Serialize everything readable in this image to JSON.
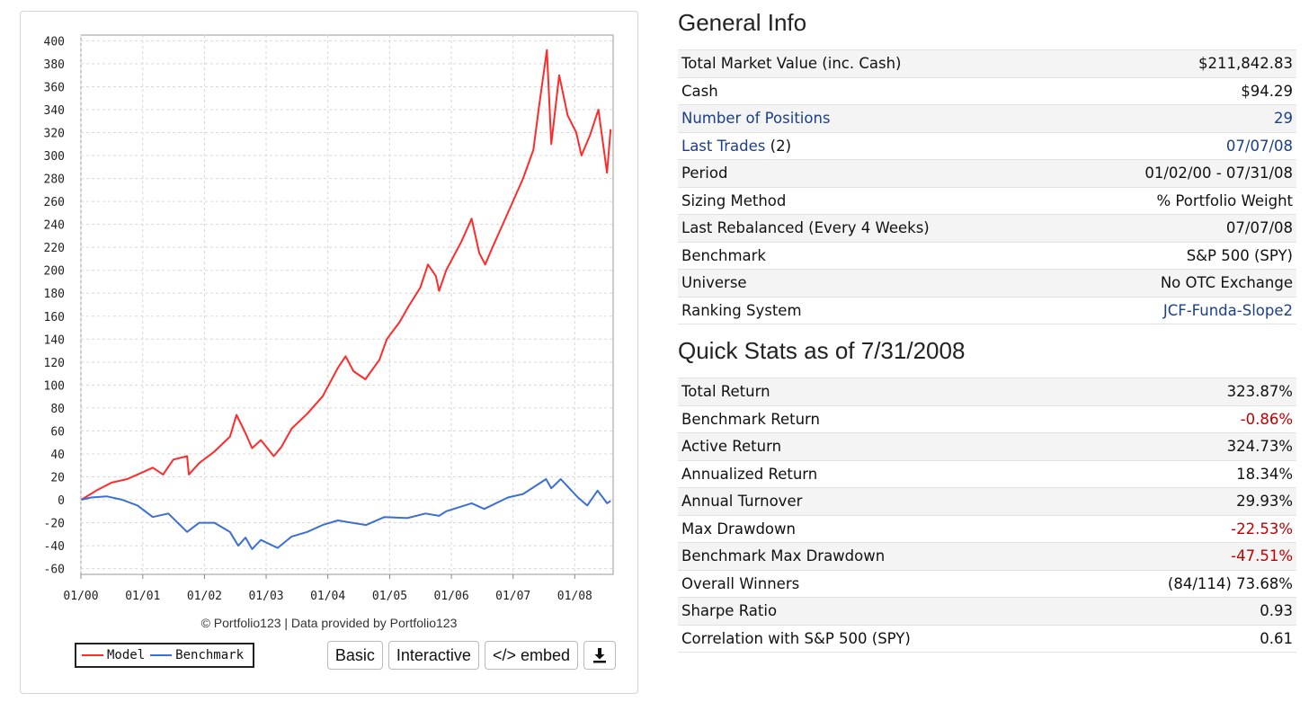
{
  "chart_data": {
    "type": "line",
    "ylim": [
      -65,
      405
    ],
    "yticks": [
      400,
      380,
      360,
      340,
      320,
      300,
      280,
      260,
      240,
      220,
      200,
      180,
      160,
      140,
      120,
      100,
      80,
      60,
      40,
      20,
      0,
      -20,
      -40,
      -60
    ],
    "x_ticks": [
      "01/00",
      "01/01",
      "01/02",
      "01/03",
      "01/04",
      "01/05",
      "01/06",
      "01/07",
      "01/08"
    ],
    "x_range": [
      "2000-01-01",
      "2008-08-15"
    ],
    "grid": true,
    "legend_position": "bottom-left",
    "series": [
      {
        "name": "Model",
        "color": "#ff2a2a",
        "points": [
          [
            "2000-01-03",
            0
          ],
          [
            "2000-04-01",
            8
          ],
          [
            "2000-07-01",
            15
          ],
          [
            "2000-10-01",
            18
          ],
          [
            "2000-12-01",
            22
          ],
          [
            "2001-03-01",
            28
          ],
          [
            "2001-05-01",
            22
          ],
          [
            "2001-07-01",
            35
          ],
          [
            "2001-09-20",
            38
          ],
          [
            "2001-10-01",
            22
          ],
          [
            "2001-12-01",
            32
          ],
          [
            "2002-03-01",
            42
          ],
          [
            "2002-06-01",
            55
          ],
          [
            "2002-07-10",
            74
          ],
          [
            "2002-09-01",
            58
          ],
          [
            "2002-10-10",
            45
          ],
          [
            "2002-12-01",
            52
          ],
          [
            "2003-02-15",
            38
          ],
          [
            "2003-04-01",
            46
          ],
          [
            "2003-06-01",
            62
          ],
          [
            "2003-09-01",
            75
          ],
          [
            "2003-12-01",
            90
          ],
          [
            "2004-03-01",
            115
          ],
          [
            "2004-04-15",
            125
          ],
          [
            "2004-06-01",
            112
          ],
          [
            "2004-08-10",
            105
          ],
          [
            "2004-11-01",
            122
          ],
          [
            "2004-12-15",
            140
          ],
          [
            "2005-03-01",
            155
          ],
          [
            "2005-04-20",
            168
          ],
          [
            "2005-07-01",
            185
          ],
          [
            "2005-08-15",
            205
          ],
          [
            "2005-10-01",
            195
          ],
          [
            "2005-10-20",
            182
          ],
          [
            "2005-12-01",
            200
          ],
          [
            "2006-03-01",
            225
          ],
          [
            "2006-05-01",
            245
          ],
          [
            "2006-06-15",
            215
          ],
          [
            "2006-07-20",
            205
          ],
          [
            "2006-09-01",
            220
          ],
          [
            "2006-12-01",
            250
          ],
          [
            "2007-03-01",
            280
          ],
          [
            "2007-05-01",
            305
          ],
          [
            "2007-06-01",
            340
          ],
          [
            "2007-07-20",
            392
          ],
          [
            "2007-08-15",
            310
          ],
          [
            "2007-10-01",
            370
          ],
          [
            "2007-11-20",
            335
          ],
          [
            "2008-01-10",
            320
          ],
          [
            "2008-02-10",
            300
          ],
          [
            "2008-04-01",
            318
          ],
          [
            "2008-05-20",
            340
          ],
          [
            "2008-07-10",
            285
          ],
          [
            "2008-07-31",
            323
          ]
        ]
      },
      {
        "name": "Benchmark",
        "color": "#3b6fd4",
        "points": [
          [
            "2000-01-03",
            0
          ],
          [
            "2000-03-01",
            2
          ],
          [
            "2000-06-01",
            3
          ],
          [
            "2000-09-01",
            0
          ],
          [
            "2000-12-01",
            -5
          ],
          [
            "2001-03-01",
            -15
          ],
          [
            "2001-06-01",
            -12
          ],
          [
            "2001-09-20",
            -28
          ],
          [
            "2001-12-01",
            -20
          ],
          [
            "2002-03-01",
            -20
          ],
          [
            "2002-06-01",
            -28
          ],
          [
            "2002-07-20",
            -40
          ],
          [
            "2002-09-01",
            -33
          ],
          [
            "2002-10-10",
            -43
          ],
          [
            "2002-12-01",
            -35
          ],
          [
            "2003-03-10",
            -42
          ],
          [
            "2003-06-01",
            -32
          ],
          [
            "2003-09-01",
            -28
          ],
          [
            "2003-12-01",
            -22
          ],
          [
            "2004-03-01",
            -18
          ],
          [
            "2004-08-15",
            -22
          ],
          [
            "2004-12-01",
            -15
          ],
          [
            "2005-04-15",
            -16
          ],
          [
            "2005-08-01",
            -12
          ],
          [
            "2005-10-20",
            -14
          ],
          [
            "2005-12-01",
            -10
          ],
          [
            "2006-05-01",
            -3
          ],
          [
            "2006-07-15",
            -8
          ],
          [
            "2006-12-01",
            2
          ],
          [
            "2007-03-01",
            5
          ],
          [
            "2007-07-15",
            18
          ],
          [
            "2007-08-15",
            10
          ],
          [
            "2007-10-10",
            18
          ],
          [
            "2008-01-20",
            2
          ],
          [
            "2008-03-15",
            -5
          ],
          [
            "2008-05-15",
            8
          ],
          [
            "2008-07-10",
            -3
          ],
          [
            "2008-07-31",
            -1
          ]
        ]
      }
    ]
  },
  "chart_meta": {
    "credit": "© Portfolio123 | Data provided by Portfolio123",
    "buttons": {
      "basic": "Basic",
      "interactive": "Interactive",
      "embed": "</> embed"
    },
    "download_icon": "download-icon"
  },
  "general": {
    "title": "General Info",
    "rows": [
      {
        "label": "Total Market Value (inc. Cash)",
        "value": "$211,842.83"
      },
      {
        "label": "Cash",
        "value": "$94.29"
      },
      {
        "label": "Number of Positions",
        "value": "29",
        "link": true
      },
      {
        "label": "Last Trades",
        "suffix": "(2)",
        "value": "07/07/08",
        "link": true
      },
      {
        "label": "Period",
        "value": "01/02/00 - 07/31/08"
      },
      {
        "label": "Sizing Method",
        "value": "% Portfolio Weight"
      },
      {
        "label": "Last Rebalanced (Every 4 Weeks)",
        "value": "07/07/08"
      },
      {
        "label": "Benchmark",
        "value": "S&P 500 (SPY)"
      },
      {
        "label": "Universe",
        "value": "No OTC Exchange"
      },
      {
        "label": "Ranking System",
        "value": "JCF-Funda-Slope2",
        "value_link": true
      }
    ]
  },
  "quick": {
    "title": "Quick Stats as of 7/31/2008",
    "rows": [
      {
        "label": "Total Return",
        "value": "323.87%"
      },
      {
        "label": "Benchmark Return",
        "value": "-0.86%",
        "negative": true
      },
      {
        "label": "Active Return",
        "value": "324.73%"
      },
      {
        "label": "Annualized Return",
        "value": "18.34%"
      },
      {
        "label": "Annual Turnover",
        "value": "29.93%"
      },
      {
        "label": "Max Drawdown",
        "value": "-22.53%",
        "negative": true
      },
      {
        "label": "Benchmark Max Drawdown",
        "value": "-47.51%",
        "negative": true
      },
      {
        "label": "Overall Winners",
        "value": "(84/114) 73.68%"
      },
      {
        "label": "Sharpe Ratio",
        "value": "0.93"
      },
      {
        "label": "Correlation with S&P 500 (SPY)",
        "value": "0.61"
      }
    ]
  }
}
